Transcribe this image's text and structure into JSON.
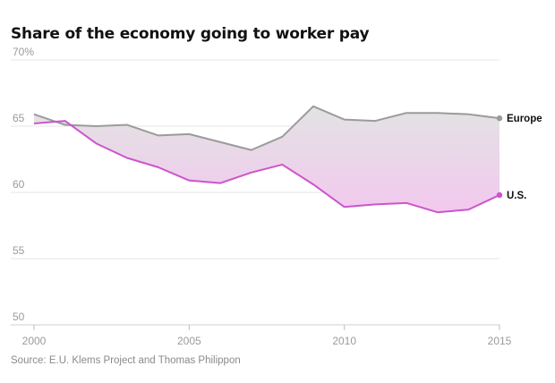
{
  "title": "Share of the economy going to worker pay",
  "source": "Source: E.U. Klems Project and Thomas Philippon",
  "colors": {
    "europe": "#9b9b9b",
    "us": "#cc55cc",
    "grid": "#e6e6e6",
    "axis": "#cfcfcf"
  },
  "chart_data": {
    "type": "line",
    "title": "Share of the economy going to worker pay",
    "xlabel": "",
    "ylabel": "",
    "x": [
      2000,
      2001,
      2002,
      2003,
      2004,
      2005,
      2006,
      2007,
      2008,
      2009,
      2010,
      2011,
      2012,
      2013,
      2014,
      2015
    ],
    "series": [
      {
        "name": "Europe",
        "values": [
          65.9,
          65.1,
          65.0,
          65.1,
          64.3,
          64.4,
          63.8,
          63.2,
          64.2,
          66.5,
          65.5,
          65.4,
          66.0,
          66.0,
          65.9,
          65.6
        ]
      },
      {
        "name": "U.S.",
        "values": [
          65.2,
          65.4,
          63.7,
          62.6,
          61.9,
          60.9,
          60.7,
          61.5,
          62.1,
          60.6,
          58.9,
          59.1,
          59.2,
          58.5,
          58.7,
          59.8
        ]
      }
    ],
    "xlim": [
      2000,
      2015
    ],
    "ylim": [
      50,
      70
    ],
    "x_ticks": [
      "2000",
      "2005",
      "2010",
      "2015"
    ],
    "y_ticks": [
      "50",
      "55",
      "60",
      "65",
      "70%"
    ],
    "grid": true,
    "legend": "direct labels at line ends",
    "shaded_gap": true
  }
}
